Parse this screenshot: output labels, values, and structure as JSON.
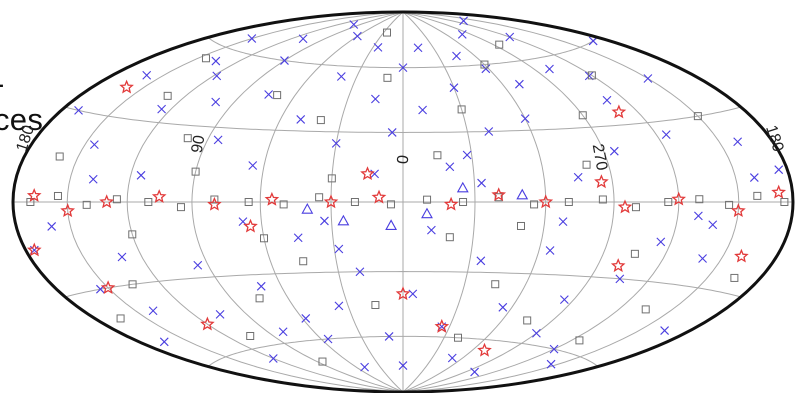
{
  "caption_fragments": {
    "line1": "-",
    "line2": "ces"
  },
  "chart_data": {
    "type": "scatter",
    "projection": "aitoff-hammer all-sky, galactic coordinates",
    "grid": true,
    "longitude_ticks": [
      "180",
      "90",
      "0",
      "270",
      "180"
    ],
    "colors": {
      "outline": "#111111",
      "grid": "#a9a9a9",
      "cross": "#4a3ee0",
      "square": "#707070",
      "star": "#e23a3a",
      "triangle": "#4a3ee0"
    },
    "series": [
      {
        "marker": "cross",
        "note": "most numerous, spread over whole sky",
        "points": [
          [
            -170,
            60
          ],
          [
            -150,
            45
          ],
          [
            -160,
            20
          ],
          [
            -140,
            -20
          ],
          [
            -165,
            -45
          ],
          [
            -120,
            70
          ],
          [
            -110,
            40
          ],
          [
            -100,
            55
          ],
          [
            -95,
            20
          ],
          [
            -130,
            -5
          ],
          [
            -105,
            -30
          ],
          [
            -90,
            -55
          ],
          [
            -120,
            -60
          ],
          [
            -80,
            75
          ],
          [
            -70,
            50
          ],
          [
            -60,
            35
          ],
          [
            -75,
            10
          ],
          [
            -65,
            -20
          ],
          [
            -55,
            -45
          ],
          [
            -85,
            -40
          ],
          [
            -45,
            65
          ],
          [
            -40,
            30
          ],
          [
            -30,
            50
          ],
          [
            -35,
            -25
          ],
          [
            -25,
            -55
          ],
          [
            -15,
            70
          ],
          [
            -10,
            40
          ],
          [
            -20,
            15
          ],
          [
            -5,
            -40
          ],
          [
            0,
            60
          ],
          [
            5,
            30
          ],
          [
            10,
            -60
          ],
          [
            15,
            45
          ],
          [
            20,
            -30
          ],
          [
            25,
            70
          ],
          [
            30,
            25
          ],
          [
            35,
            -45
          ],
          [
            40,
            55
          ],
          [
            45,
            -15
          ],
          [
            50,
            35
          ],
          [
            55,
            -60
          ],
          [
            60,
            75
          ],
          [
            65,
            15
          ],
          [
            70,
            -35
          ],
          [
            75,
            45
          ],
          [
            80,
            -55
          ],
          [
            85,
            25
          ],
          [
            90,
            60
          ],
          [
            95,
            -25
          ],
          [
            100,
            40
          ],
          [
            105,
            -45
          ],
          [
            110,
            70
          ],
          [
            115,
            10
          ],
          [
            120,
            -65
          ],
          [
            125,
            35
          ],
          [
            130,
            -20
          ],
          [
            135,
            55
          ],
          [
            140,
            -40
          ],
          [
            145,
            20
          ],
          [
            150,
            65
          ],
          [
            155,
            -30
          ],
          [
            160,
            45
          ],
          [
            165,
            -50
          ],
          [
            170,
            30
          ],
          [
            175,
            -15
          ],
          [
            -175,
            10
          ],
          [
            -145,
            -65
          ],
          [
            -125,
            25
          ],
          [
            -115,
            -15
          ],
          [
            -135,
            80
          ],
          [
            -50,
            -70
          ],
          [
            50,
            -75
          ],
          [
            100,
            80
          ],
          [
            -100,
            -75
          ],
          [
            0,
            -75
          ],
          [
            12,
            12
          ],
          [
            -12,
            -12
          ],
          [
            33,
            -8
          ],
          [
            -33,
            8
          ],
          [
            68,
            -8
          ],
          [
            -68,
            -8
          ],
          [
            138,
            8
          ],
          [
            -138,
            -8
          ],
          [
            160,
            -8
          ],
          [
            -160,
            8
          ],
          [
            118,
            50
          ],
          [
            -118,
            50
          ],
          [
            58,
            -50
          ],
          [
            -58,
            58
          ],
          [
            28,
            -20
          ],
          [
            -28,
            20
          ]
        ]
      },
      {
        "marker": "square",
        "note": "concentrated along galactic plane and scattered",
        "points": [
          [
            -175,
            0
          ],
          [
            -160,
            2
          ],
          [
            -145,
            -1
          ],
          [
            -130,
            1
          ],
          [
            -115,
            0
          ],
          [
            -100,
            -2
          ],
          [
            -85,
            1
          ],
          [
            -70,
            0
          ],
          [
            -55,
            -1
          ],
          [
            -40,
            2
          ],
          [
            -25,
            0
          ],
          [
            -10,
            1
          ],
          [
            5,
            -1
          ],
          [
            20,
            0
          ],
          [
            35,
            2
          ],
          [
            50,
            -1
          ],
          [
            65,
            0
          ],
          [
            80,
            1
          ],
          [
            95,
            -2
          ],
          [
            110,
            0
          ],
          [
            125,
            1
          ],
          [
            140,
            -1
          ],
          [
            155,
            2
          ],
          [
            170,
            0
          ],
          [
            -150,
            30
          ],
          [
            -120,
            50
          ],
          [
            -90,
            35
          ],
          [
            -60,
            60
          ],
          [
            -30,
            40
          ],
          [
            -15,
            20
          ],
          [
            10,
            55
          ],
          [
            40,
            35
          ],
          [
            70,
            45
          ],
          [
            100,
            25
          ],
          [
            130,
            40
          ],
          [
            160,
            15
          ],
          [
            -165,
            -25
          ],
          [
            -135,
            -40
          ],
          [
            -105,
            -20
          ],
          [
            -75,
            -50
          ],
          [
            -45,
            -35
          ],
          [
            -20,
            -15
          ],
          [
            15,
            -45
          ],
          [
            45,
            -25
          ],
          [
            75,
            -40
          ],
          [
            105,
            -55
          ],
          [
            135,
            -30
          ],
          [
            165,
            -40
          ],
          [
            -80,
            15
          ],
          [
            -50,
            -10
          ],
          [
            30,
            10
          ],
          [
            60,
            -15
          ],
          [
            90,
            12
          ],
          [
            120,
            -12
          ],
          [
            -125,
            -55
          ],
          [
            145,
            55
          ],
          [
            -40,
            -60
          ],
          [
            85,
            -70
          ],
          [
            -95,
            68
          ],
          [
            25,
            78
          ]
        ]
      },
      {
        "marker": "star",
        "note": "mostly along the galactic plane",
        "points": [
          [
            -172,
            3
          ],
          [
            -150,
            -3
          ],
          [
            -120,
            1
          ],
          [
            -95,
            -2
          ],
          [
            -85,
            8
          ],
          [
            -60,
            0
          ],
          [
            -40,
            3
          ],
          [
            -20,
            -1
          ],
          [
            10,
            2
          ],
          [
            30,
            0
          ],
          [
            55,
            1
          ],
          [
            80,
            -1
          ],
          [
            105,
            2
          ],
          [
            130,
            0
          ],
          [
            150,
            -3
          ],
          [
            168,
            2
          ],
          [
            -160,
            -18
          ],
          [
            -110,
            35
          ],
          [
            -100,
            -25
          ],
          [
            15,
            12
          ],
          [
            0,
            -40
          ],
          [
            -25,
            -55
          ],
          [
            120,
            -48
          ],
          [
            150,
            -30
          ],
          [
            -70,
            -65
          ],
          [
            160,
            40
          ],
          [
            175,
            -15
          ],
          [
            65,
            -10
          ]
        ]
      },
      {
        "marker": "triangle",
        "note": "few, near the plane",
        "points": [
          [
            -10,
            -5
          ],
          [
            5,
            -10
          ],
          [
            25,
            -8
          ],
          [
            -25,
            6
          ],
          [
            40,
            -3
          ],
          [
            -50,
            3
          ]
        ]
      }
    ]
  }
}
